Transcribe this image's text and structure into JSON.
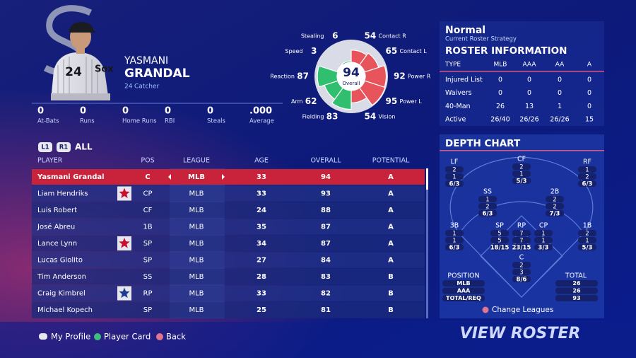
{
  "player": {
    "first_name": "YASMANI",
    "last_name": "GRANDAL",
    "number": "24",
    "position": "Catcher"
  },
  "stats": [
    {
      "value": 0,
      "label": "At-Bats"
    },
    {
      "value": 0,
      "label": "Runs"
    },
    {
      "value": 0,
      "label": "Home Runs"
    },
    {
      "value": 0,
      "label": "RBI"
    },
    {
      "value": 0,
      "label": "Steals"
    },
    {
      "value": ".000",
      "label": "Average"
    }
  ],
  "ratings": {
    "overall": 94,
    "overall_label": "Overall",
    "attributes": [
      {
        "name": "Contact R",
        "value": 54,
        "color": "#e8545c"
      },
      {
        "name": "Contact L",
        "value": 65,
        "color": "#e8545c"
      },
      {
        "name": "Power R",
        "value": 92,
        "color": "#e8545c"
      },
      {
        "name": "Power L",
        "value": 95,
        "color": "#e8545c"
      },
      {
        "name": "Vision",
        "value": 54,
        "color": "#e8545c"
      },
      {
        "name": "Fielding",
        "value": 83,
        "color": "#2fbf6e"
      },
      {
        "name": "Arm",
        "value": 62,
        "color": "#2fbf6e"
      },
      {
        "name": "Reaction",
        "value": 87,
        "color": "#2fbf6e"
      },
      {
        "name": "Speed",
        "value": 3,
        "color": "#2fbf6e"
      },
      {
        "name": "Stealing",
        "value": 6,
        "color": "#2fbf6e"
      }
    ]
  },
  "strategy": {
    "name": "Normal",
    "caption": "Current Roster Strategy"
  },
  "roster_info": {
    "title": "ROSTER INFORMATION",
    "header": [
      "TYPE",
      "MLB",
      "AAA",
      "AA",
      "A"
    ],
    "rows": [
      [
        "Injured List",
        0,
        0,
        0,
        0
      ],
      [
        "Waivers",
        0,
        0,
        0,
        0
      ],
      [
        "40-Man",
        26,
        13,
        1,
        0
      ],
      [
        "Active",
        "26/40",
        "26/26",
        "26/26",
        15
      ]
    ]
  },
  "depth_chart": {
    "title": "DEPTH CHART",
    "positions": [
      {
        "label": "LF",
        "values": [
          2,
          1
        ],
        "total": "6/3"
      },
      {
        "label": "CF",
        "values": [
          2,
          1
        ],
        "total": "5/3"
      },
      {
        "label": "RF",
        "values": [
          1,
          2
        ],
        "total": "6/3"
      },
      {
        "label": "SS",
        "values": [
          1,
          2
        ],
        "total": "6/3"
      },
      {
        "label": "2B",
        "values": [
          2,
          2
        ],
        "total": "7/3"
      },
      {
        "label": "3B",
        "values": [
          1,
          1
        ],
        "total": "6/3"
      },
      {
        "label": "SP",
        "values": [
          5,
          5
        ],
        "total": "18/15"
      },
      {
        "label": "RP",
        "values": [
          7,
          7
        ],
        "total": "23/15"
      },
      {
        "label": "CP",
        "values": [
          1,
          1
        ],
        "total": "3/3"
      },
      {
        "label": "1B",
        "values": [
          2,
          1
        ],
        "total": "5/3"
      },
      {
        "label": "C",
        "values": [
          2,
          3
        ],
        "total": "8/6"
      }
    ],
    "legend": {
      "title": "POSITION",
      "rows": [
        "MLB",
        "AAA",
        "TOTAL/REQ"
      ],
      "total_title": "TOTAL",
      "totals": [
        26,
        26,
        93
      ]
    },
    "change": "Change Leagues"
  },
  "table": {
    "tabs": [
      "L1",
      "R1",
      "ALL"
    ],
    "header": [
      "PLAYER",
      "POS",
      "LEAGUE",
      "AGE",
      "OVERALL",
      "POTENTIAL"
    ],
    "selected_row": 0,
    "rows": [
      {
        "name": "Yasmani Grandal",
        "pos": "C",
        "league": "MLB",
        "age": 33,
        "overall": 94,
        "potential": "A"
      },
      {
        "name": "Liam Hendriks",
        "pos": "CP",
        "league": "MLB",
        "age": 33,
        "overall": 93,
        "potential": "A",
        "badge": "#c8102e"
      },
      {
        "name": "Luis Robert",
        "pos": "CF",
        "league": "MLB",
        "age": 24,
        "overall": 88,
        "potential": "A"
      },
      {
        "name": "José Abreu",
        "pos": "1B",
        "league": "MLB",
        "age": 35,
        "overall": 87,
        "potential": "A"
      },
      {
        "name": "Lance Lynn",
        "pos": "SP",
        "league": "MLB",
        "age": 34,
        "overall": 87,
        "potential": "A",
        "badge": "#c8102e"
      },
      {
        "name": "Lucas Giolito",
        "pos": "SP",
        "league": "MLB",
        "age": 27,
        "overall": 84,
        "potential": "A"
      },
      {
        "name": "Tim Anderson",
        "pos": "SS",
        "league": "MLB",
        "age": 28,
        "overall": 83,
        "potential": "B"
      },
      {
        "name": "Craig Kimbrel",
        "pos": "RP",
        "league": "MLB",
        "age": 33,
        "overall": 82,
        "potential": "B",
        "badge": "#1d3c8f"
      },
      {
        "name": "Michael Kopech",
        "pos": "SP",
        "league": "MLB",
        "age": 25,
        "overall": 81,
        "potential": "B"
      }
    ]
  },
  "footer": {
    "buttons": [
      "My Profile",
      "Player Card",
      "Back"
    ],
    "action": "VIEW ROSTER"
  }
}
